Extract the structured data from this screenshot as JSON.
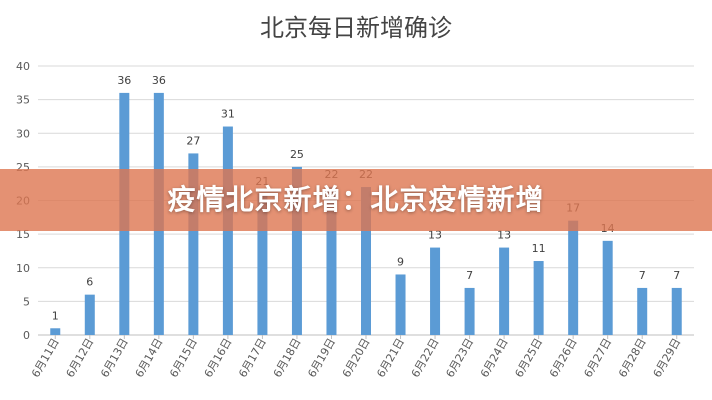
{
  "chart_data": {
    "type": "bar",
    "title": "北京每日新增确诊",
    "categories": [
      "6月11日",
      "6月12日",
      "6月13日",
      "6月14日",
      "6月15日",
      "6月16日",
      "6月17日",
      "6月18日",
      "6月19日",
      "6月20日",
      "6月21日",
      "6月22日",
      "6月23日",
      "6月24日",
      "6月25日",
      "6月26日",
      "6月27日",
      "6月28日",
      "6月29日"
    ],
    "values": [
      1,
      6,
      36,
      36,
      27,
      31,
      21,
      25,
      22,
      22,
      9,
      13,
      7,
      13,
      11,
      17,
      14,
      7,
      7
    ],
    "ylim": [
      0,
      40
    ],
    "yticks": [
      0,
      5,
      10,
      15,
      20,
      25,
      30,
      35,
      40
    ],
    "grid": true,
    "legend": "none",
    "bar_color": "#5b9bd5"
  },
  "banner": {
    "text": "疫情北京新增：北京疫情新增",
    "color": "#dd7650"
  }
}
